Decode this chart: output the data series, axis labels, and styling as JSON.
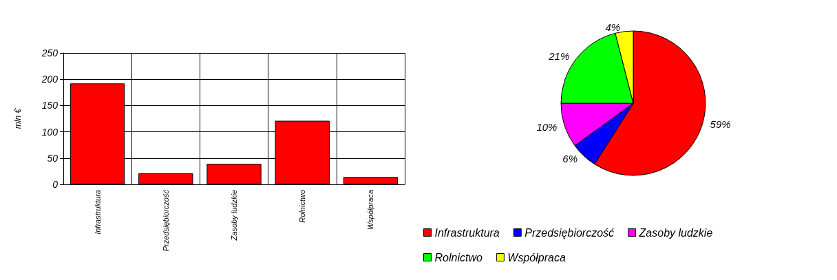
{
  "chart_data": [
    {
      "type": "bar",
      "categories": [
        "Infrastruktura",
        "Przedsiębiorczość",
        "Zasoby ludzkie",
        "Rolnictwo",
        "Współpraca"
      ],
      "values": [
        192,
        21,
        39,
        121,
        14
      ],
      "color": "#ff0000",
      "ylabel": "mln €",
      "ylim": [
        0,
        250
      ],
      "yticks": [
        0,
        50,
        100,
        150,
        200,
        250
      ],
      "grid": true
    },
    {
      "type": "pie",
      "categories": [
        "Infrastruktura",
        "Przedsiębiorczość",
        "Zasoby ludzkie",
        "Rolnictwo",
        "Współpraca"
      ],
      "values": [
        59,
        6,
        10,
        21,
        4
      ],
      "value_labels": [
        "59%",
        "6%",
        "10%",
        "21%",
        "4%"
      ],
      "colors": [
        "#ff0000",
        "#0000ff",
        "#ff00ff",
        "#00ff00",
        "#ffff00"
      ],
      "legend": "bottom"
    }
  ]
}
